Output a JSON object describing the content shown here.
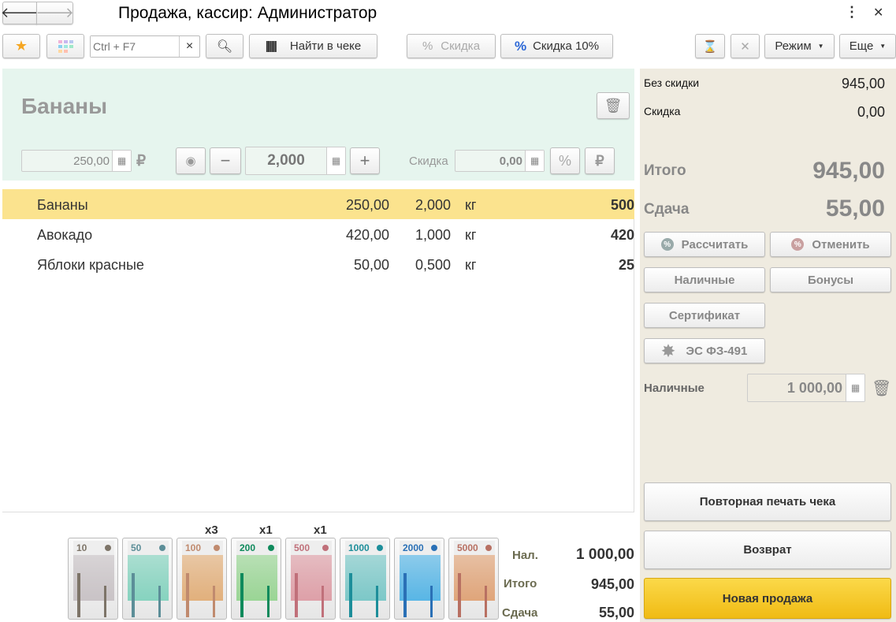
{
  "title": "Продажа, кассир: Администратор",
  "toolbar": {
    "search_placeholder": "Ctrl + F7",
    "clear": "×",
    "find_in_check": "Найти в чеке",
    "discount": "Скидка",
    "discount10": "Скидка 10%",
    "mode": "Режим",
    "more": "Еще"
  },
  "item": {
    "name": "Бананы",
    "price": "250,00",
    "currency": "₽",
    "quantity": "2,000",
    "discount_label": "Скидка",
    "discount": "0,00"
  },
  "lines": [
    {
      "name": "Бананы",
      "price": "250,00",
      "qty": "2,000",
      "unit": "кг",
      "sum": "500",
      "selected": true
    },
    {
      "name": "Авокадо",
      "price": "420,00",
      "qty": "1,000",
      "unit": "кг",
      "sum": "420"
    },
    {
      "name": "Яблоки красные",
      "price": "50,00",
      "qty": "0,500",
      "unit": "кг",
      "sum": "25"
    }
  ],
  "banknotes": [
    {
      "value": "10",
      "count": "",
      "color": "#c9c3c6",
      "accent": "#7d7468"
    },
    {
      "value": "50",
      "count": "",
      "color": "#86d3bf",
      "accent": "#5c8e98"
    },
    {
      "value": "100",
      "count": "x3",
      "color": "#e2b07c",
      "accent": "#c08a6e"
    },
    {
      "value": "200",
      "count": "x1",
      "color": "#9ad595",
      "accent": "#0f8a5c"
    },
    {
      "value": "500",
      "count": "x1",
      "color": "#dea0a8",
      "accent": "#c0707a"
    },
    {
      "value": "1000",
      "count": "",
      "color": "#7cc8c8",
      "accent": "#1d8e9a"
    },
    {
      "value": "2000",
      "count": "",
      "color": "#58b6e6",
      "accent": "#2a70b6"
    },
    {
      "value": "5000",
      "count": "",
      "color": "#e0a57a",
      "accent": "#b87062"
    }
  ],
  "bottom_summary": {
    "cash_label": "Нал.",
    "cash": "1 000,00",
    "total_label": "Итого",
    "total": "945,00",
    "change_label": "Сдача",
    "change": "55,00"
  },
  "summary": {
    "no_discount_label": "Без скидки",
    "no_discount": "945,00",
    "discount_label": "Скидка",
    "discount": "0,00",
    "total_label": "Итого",
    "total": "945,00",
    "change_label": "Сдача",
    "change": "55,00"
  },
  "payment": {
    "calculate": "Рассчитать",
    "cancel": "Отменить",
    "cash": "Наличные",
    "bonuses": "Бонусы",
    "certificate": "Сертификат",
    "es": "ЭС ФЗ-491",
    "cash_label": "Наличные",
    "cash_value": "1 000,00"
  },
  "actions": {
    "reprint": "Повторная печать чека",
    "return": "Возврат",
    "new_sale": "Новая продажа"
  },
  "colors": {
    "selected_row": "#fbe38e",
    "item_panel": "#e6f5ee",
    "summary_panel": "#efebe0",
    "new_sale": "#f3c21b"
  }
}
